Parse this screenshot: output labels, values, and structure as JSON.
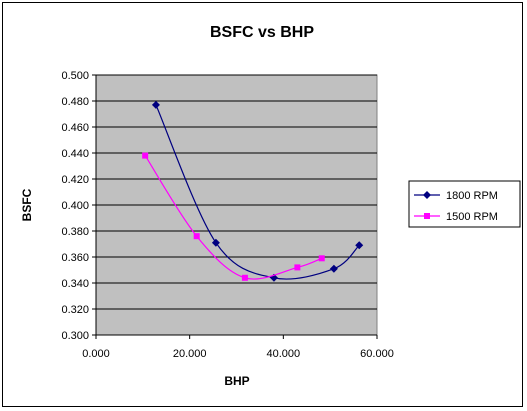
{
  "chart_data": {
    "type": "line",
    "title": "BSFC vs BHP",
    "xlabel": "BHP",
    "ylabel": "BSFC",
    "xlim": [
      0,
      60
    ],
    "ylim": [
      0.3,
      0.5
    ],
    "x_ticks": [
      "0.000",
      "20.000",
      "40.000",
      "60.000"
    ],
    "y_ticks": [
      "0.300",
      "0.320",
      "0.340",
      "0.360",
      "0.380",
      "0.400",
      "0.420",
      "0.440",
      "0.460",
      "0.480",
      "0.500"
    ],
    "grid": "horizontal",
    "plot_background": "#c0c0c0",
    "legend_position": "right",
    "series": [
      {
        "name": "1800 RPM",
        "color": "#000080",
        "marker": "diamond",
        "x": [
          12.8,
          25.6,
          38.0,
          50.8,
          56.2
        ],
        "y": [
          0.477,
          0.371,
          0.344,
          0.351,
          0.369
        ]
      },
      {
        "name": "1500 RPM",
        "color": "#ff00ff",
        "marker": "square",
        "x": [
          10.5,
          21.5,
          31.8,
          43.0,
          48.2
        ],
        "y": [
          0.438,
          0.376,
          0.344,
          0.352,
          0.359
        ]
      }
    ]
  }
}
